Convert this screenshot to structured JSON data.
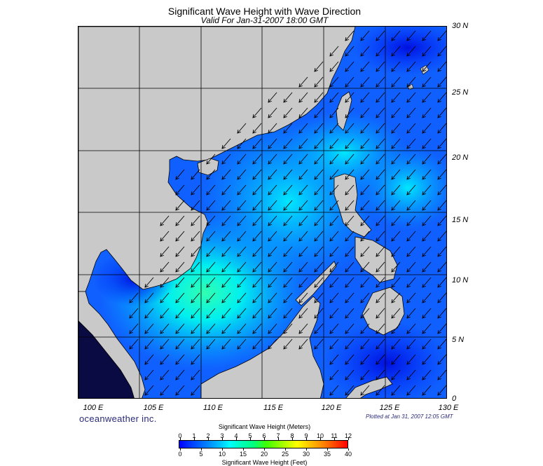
{
  "title": "Significant Wave Height with Wave Direction",
  "subtitle": "Valid For Jan-31-2007 18:00 GMT",
  "map": {
    "lon_labels": [
      "100 E",
      "105 E",
      "110 E",
      "115 E",
      "120 E",
      "125 E",
      "130 E"
    ],
    "lat_labels": [
      "30 N",
      "25 N",
      "20 N",
      "15 N",
      "10 N",
      "5 N",
      "0"
    ],
    "land_color": "#c9c9c9",
    "coast_color": "#000000",
    "wave_direction": "from northeast toward southwest"
  },
  "brand": "oceanweather inc.",
  "plotted_note": "Plotted at Jan 31, 2007 12:05 GMT",
  "legend": {
    "meters_title": "Significant Wave Height (Meters)",
    "feet_title": "Significant Wave Height (Feet)",
    "meters_ticks": [
      "0",
      "1",
      "2",
      "3",
      "4",
      "5",
      "6",
      "7",
      "8",
      "9",
      "10",
      "11",
      "12"
    ],
    "feet_ticks": [
      "0",
      "5",
      "10",
      "15",
      "20",
      "25",
      "30",
      "35",
      "40"
    ]
  },
  "colors": {
    "deep_blue": "#0000ff",
    "blue": "#0060ff",
    "cyan": "#00ffff",
    "green": "#00ff80"
  }
}
